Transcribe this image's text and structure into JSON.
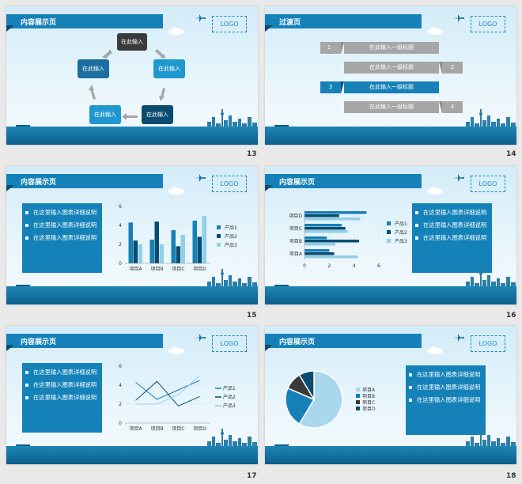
{
  "slides": {
    "s13": {
      "title": "内容展示页",
      "logo": "LOGO",
      "number": "13",
      "cycle": [
        "在此输入",
        "在此输入",
        "在此输入",
        "在此输入",
        "在此输入"
      ]
    },
    "s14": {
      "title": "过渡页",
      "logo": "LOGO",
      "number": "14",
      "items": [
        {
          "num": "1",
          "label": "在此输入一级标题"
        },
        {
          "num": "2",
          "label": "在此输入一级标题"
        },
        {
          "num": "3",
          "label": "在此输入一级标题"
        },
        {
          "num": "4",
          "label": "在此输入一级标题"
        }
      ]
    },
    "s15": {
      "title": "内容展示页",
      "logo": "LOGO",
      "number": "15",
      "bullets": [
        "在这里输入图表详细说明",
        "在这里输入图表详细说明",
        "在这里输入图表详细说明"
      ]
    },
    "s16": {
      "title": "内容展示页",
      "logo": "LOGO",
      "number": "16",
      "bullets": [
        "在这里输入图表详细说明",
        "在这里输入图表详细说明",
        "在这里输入图表详细说明"
      ]
    },
    "s17": {
      "title": "内容展示页",
      "logo": "LOGO",
      "number": "17",
      "bullets": [
        "在这里输入图表详细说明",
        "在这里输入图表详细说明",
        "在这里输入图表详细说明"
      ]
    },
    "s18": {
      "title": "内容展示页",
      "logo": "LOGO",
      "number": "18",
      "bullets": [
        "在这里输入图表详细说明",
        "在这里输入图表详细说明",
        "在这里输入图表详细说明"
      ]
    }
  },
  "colors": {
    "primary": "#1681b8",
    "dark": "#0a4c70",
    "gray": "#a6a6a6",
    "light": "#93cfe6"
  },
  "chart_data": [
    {
      "type": "bar",
      "categories": [
        "项目A",
        "项目B",
        "项目C",
        "项目D"
      ],
      "series": [
        {
          "name": "产品1",
          "values": [
            4.3,
            2.5,
            3.5,
            4.5
          ]
        },
        {
          "name": "产品2",
          "values": [
            2.4,
            4.4,
            1.8,
            2.8
          ]
        },
        {
          "name": "产品3",
          "values": [
            2,
            2,
            3,
            5
          ]
        }
      ],
      "ylim": [
        0,
        6
      ],
      "yticks": [
        "0",
        "2",
        "4",
        "6"
      ],
      "legend": "right"
    },
    {
      "type": "bar",
      "orientation": "horizontal",
      "categories": [
        "项目A",
        "项目B",
        "项目C",
        "项目D"
      ],
      "series": [
        {
          "name": "产品1",
          "values": [
            2,
            1.8,
            3,
            5
          ]
        },
        {
          "name": "产品2",
          "values": [
            2.4,
            4.4,
            3.3,
            2.8
          ]
        },
        {
          "name": "产品3",
          "values": [
            4.3,
            2.5,
            3.5,
            4.5
          ]
        }
      ],
      "xlim": [
        0,
        6
      ],
      "xticks": [
        "0",
        "2",
        "4",
        "6"
      ],
      "legend": "right"
    },
    {
      "type": "line",
      "categories": [
        "项目A",
        "项目B",
        "项目C",
        "项目D"
      ],
      "series": [
        {
          "name": "产品1",
          "values": [
            4.3,
            2.5,
            3.5,
            4.5
          ]
        },
        {
          "name": "产品2",
          "values": [
            2.4,
            4.4,
            1.8,
            2.8
          ]
        },
        {
          "name": "产品3",
          "values": [
            2,
            2,
            3,
            5
          ]
        }
      ],
      "ylim": [
        0,
        6
      ],
      "yticks": [
        "0",
        "2",
        "4",
        "6"
      ],
      "legend": "right"
    },
    {
      "type": "pie",
      "categories": [
        "项目A",
        "项目B",
        "项目C",
        "项目D"
      ],
      "values": [
        8.2,
        3.2,
        1.4,
        1.2
      ],
      "legend": "right"
    }
  ]
}
